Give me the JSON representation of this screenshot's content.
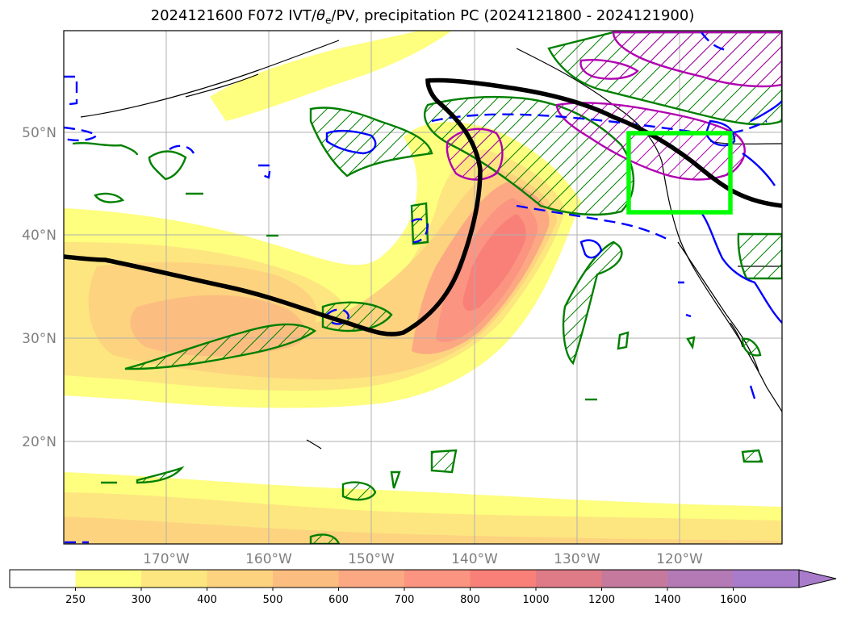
{
  "title": {
    "prefix": "2024121600 F072 IVT/",
    "theta_sym": "θ",
    "theta_sub": "e",
    "suffix": "/PV, precipitation PC (2024121800 - 2024121900)"
  },
  "lat_labels": [
    "50°N",
    "40°N",
    "30°N",
    "20°N"
  ],
  "lon_labels": [
    "170°W",
    "160°W",
    "150°W",
    "140°W",
    "130°W",
    "120°W"
  ],
  "colorbar": {
    "ticks": [
      "250",
      "300",
      "400",
      "500",
      "600",
      "700",
      "800",
      "1000",
      "1200",
      "1400",
      "1600"
    ],
    "colors": [
      "#ffffff",
      "#fefe7f",
      "#fde680",
      "#fdd37f",
      "#fcbe80",
      "#fca983",
      "#fb9481",
      "#f98079",
      "#de7b86",
      "#c57a9d",
      "#b37ab6",
      "#a87ccb"
    ],
    "extend": "max"
  },
  "legend_colors": {
    "pv_contour": "#0000ff",
    "precip_contour": "#008000",
    "precip_hatch": "#008000",
    "magenta_contour": "#b000b0",
    "jet_line": "#000000",
    "target_box": "#00ff00"
  }
}
